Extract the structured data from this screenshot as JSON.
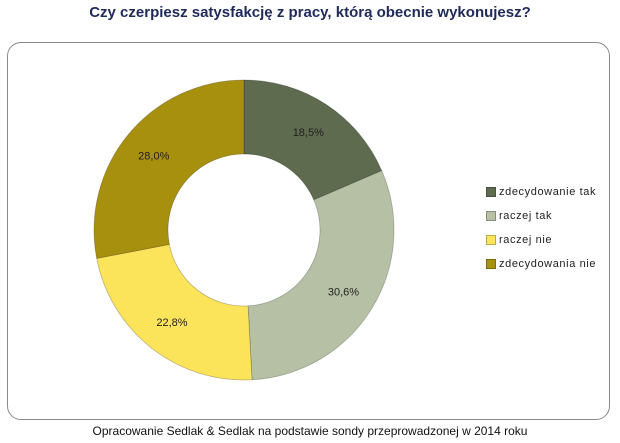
{
  "title": "Czy czerpiesz satysfakcję z pracy, którą obecnie wykonujesz?",
  "footer": "Opracowanie Sedlak & Sedlak na podstawie sondy przeprowadzonej w 2014 roku",
  "legend": [
    {
      "label": "zdecydowanie tak",
      "color": "#5e6b4f"
    },
    {
      "label": "raczej tak",
      "color": "#b5c0a4"
    },
    {
      "label": "raczej nie",
      "color": "#fbe35a"
    },
    {
      "label": "zdecydowania nie",
      "color": "#a8900f"
    }
  ],
  "chart_data": {
    "type": "pie",
    "subtype": "donut",
    "title": "Czy czerpiesz satysfakcję z pracy, którą obecnie wykonujesz?",
    "categories": [
      "zdecydowanie tak",
      "raczej tak",
      "raczej nie",
      "zdecydowania nie"
    ],
    "values": [
      18.5,
      30.6,
      22.8,
      28.0
    ],
    "labels": [
      "18,5%",
      "30,6%",
      "22,8%",
      "28,0%"
    ],
    "colors": [
      "#5e6b4f",
      "#b5c0a4",
      "#fbe35a",
      "#a8900f"
    ],
    "legend_position": "right",
    "source": "Opracowanie Sedlak & Sedlak na podstawie sondy przeprowadzonej w 2014 roku"
  }
}
